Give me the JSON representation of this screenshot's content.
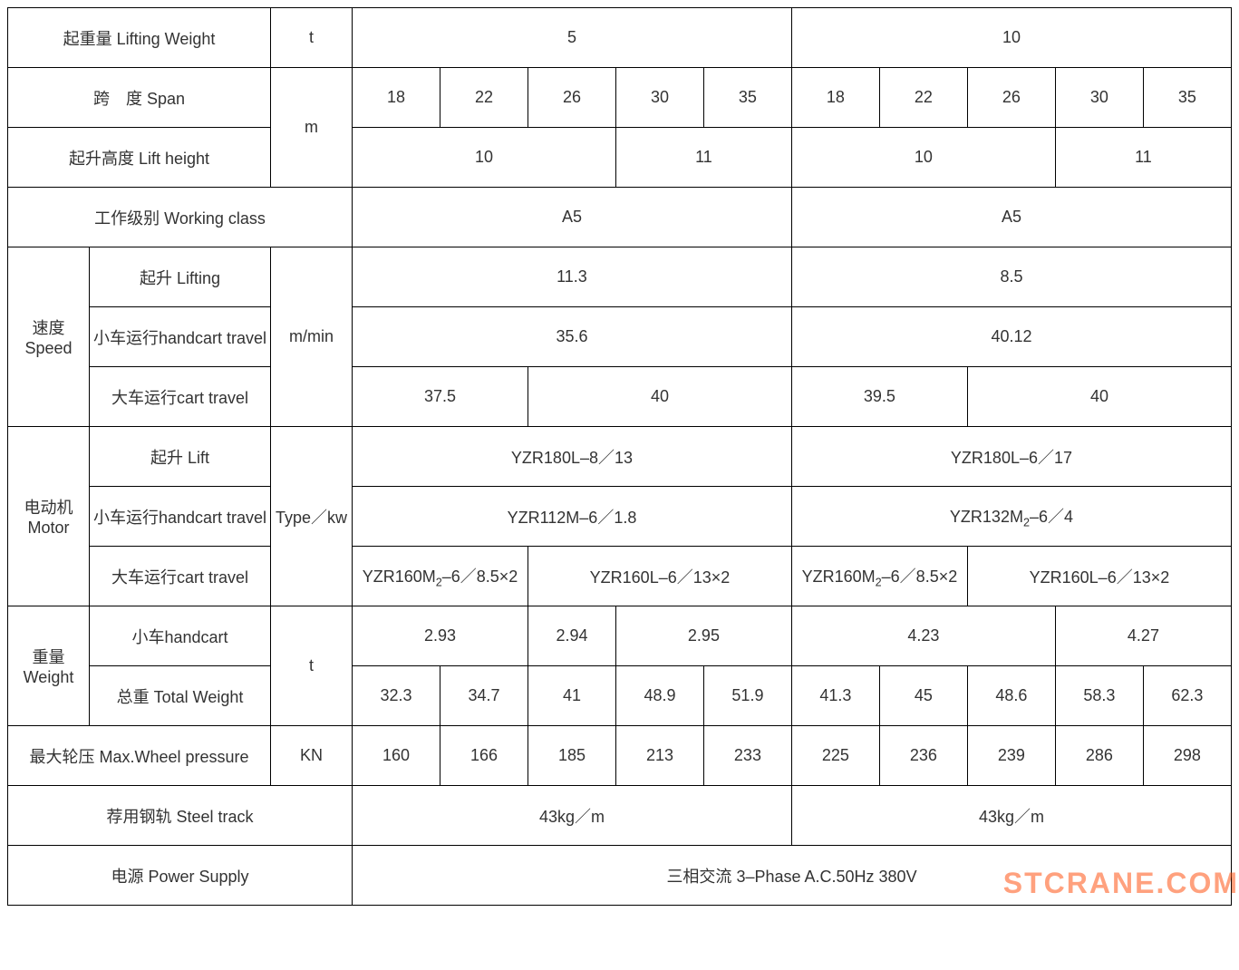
{
  "table": {
    "border_color": "#000000",
    "text_color": "#333333",
    "font_size_pt": 14,
    "background_color": "#ffffff",
    "labels": {
      "lifting_weight": "起重量 Lifting Weight",
      "span": "跨　度 Span",
      "lift_height": "起升高度 Lift height",
      "working_class": "工作级别 Working class",
      "speed": "速度 Speed",
      "speed_lifting": "起升 Lifting",
      "speed_handcart": "小车运行handcart travel",
      "speed_cart": "大车运行cart travel",
      "motor": "电动机 Motor",
      "motor_lift": "起升 Lift",
      "motor_handcart": "小车运行handcart travel",
      "motor_cart": "大车运行cart travel",
      "weight": "重量 Weight",
      "weight_handcart": "小车handcart",
      "weight_total": "总重 Total Weight",
      "max_wheel_pressure": "最大轮压 Max.Wheel pressure",
      "steel_track": "荐用钢轨 Steel track",
      "power_supply": "电源 Power Supply"
    },
    "units": {
      "t": "t",
      "m": "m",
      "m_min": "m/min",
      "type_kw": "Type／kw",
      "kn": "KN"
    },
    "lifting_weight": {
      "col5": "5",
      "col10": "10"
    },
    "span_values": {
      "a": [
        "18",
        "22",
        "26",
        "30",
        "35"
      ],
      "b": [
        "18",
        "22",
        "26",
        "30",
        "35"
      ]
    },
    "lift_height": {
      "a1": "10",
      "a2": "11",
      "b1": "10",
      "b2": "11"
    },
    "working_class": {
      "a": "A5",
      "b": "A5"
    },
    "speed": {
      "lifting": {
        "a": "11.3",
        "b": "8.5"
      },
      "handcart": {
        "a": "35.6",
        "b": "40.12"
      },
      "cart": {
        "a1": "37.5",
        "a2": "40",
        "b1": "39.5",
        "b2": "40"
      }
    },
    "motor": {
      "lift": {
        "a": "YZR180L–8／13",
        "b": "YZR180L–6／17"
      },
      "handcart": {
        "a": "YZR112M–6／1.8",
        "b_html": "YZR132M<sub>2</sub>–6／4"
      },
      "cart": {
        "a1_html": "YZR160M<sub>2</sub>–6／8.5×2",
        "a2": "YZR160L–6／13×2",
        "b1_html": "YZR160M<sub>2</sub>–6／8.5×2",
        "b2": "YZR160L–6／13×2"
      }
    },
    "weight": {
      "handcart": {
        "a1": "2.93",
        "a2": "2.94",
        "a3": "2.95",
        "b1": "4.23",
        "b2": "4.27"
      },
      "total": {
        "a": [
          "32.3",
          "34.7",
          "41",
          "48.9",
          "51.9"
        ],
        "b": [
          "41.3",
          "45",
          "48.6",
          "58.3",
          "62.3"
        ]
      }
    },
    "max_wheel_pressure": {
      "a": [
        "160",
        "166",
        "185",
        "213",
        "233"
      ],
      "b": [
        "225",
        "236",
        "239",
        "286",
        "298"
      ]
    },
    "steel_track": {
      "a": "43kg／m",
      "b": "43kg／m"
    },
    "power_supply": "三相交流 3–Phase A.C.50Hz 380V"
  },
  "watermark": {
    "text": "STCRANE.COM",
    "color": "#ff4500",
    "opacity": 0.5,
    "font_size_pt": 24
  }
}
